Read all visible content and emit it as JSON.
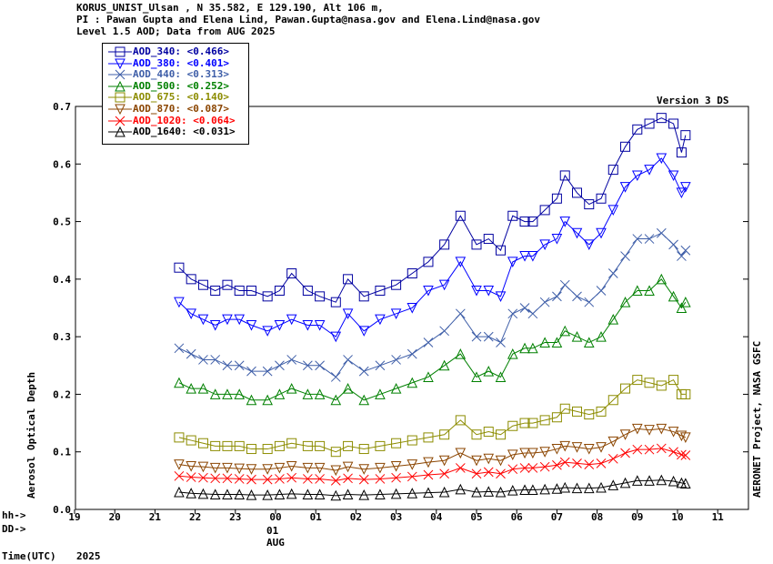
{
  "header": {
    "line1": "KORUS_UNIST_Ulsan , N 35.582, E 129.190, Alt 106 m,",
    "line2": "PI : Pawan Gupta and Elena Lind, Pawan.Gupta@nasa.gov and Elena.Lind@nasa.gov",
    "line3": "Level 1.5 AOD; Data from AUG 2025"
  },
  "version_label": "Version 3 DS",
  "right_label": "AERONET Project, NASA GSFC",
  "y_axis_label": "Aerosol Optical Depth",
  "time_axis": {
    "hh_label": "hh->",
    "dd_label": "DD->",
    "day_tick_labels": [
      "19",
      "20",
      "21",
      "22",
      "23",
      "00",
      "01",
      "02",
      "03",
      "04",
      "05",
      "06",
      "07",
      "08",
      "09",
      "10",
      "11"
    ],
    "day_mark": "01",
    "month_label": "AUG",
    "time_label": "Time(UTC)",
    "year": "2025"
  },
  "colors": {
    "AOD_340": "#0000a0",
    "AOD_380": "#0000ff",
    "AOD_440": "#3e5ea8",
    "AOD_500": "#008000",
    "AOD_675": "#8c8c00",
    "AOD_870": "#8b4500",
    "AOD_1020": "#ff0000",
    "AOD_1640": "#000000"
  },
  "chart_data": {
    "type": "scatter",
    "xlim": [
      19,
      11.8
    ],
    "ylim": [
      0.0,
      0.7
    ],
    "y_ticks": [
      "0.0",
      "0.1",
      "0.2",
      "0.3",
      "0.4",
      "0.5",
      "0.6",
      "0.7"
    ],
    "legend_position": "top-left",
    "series": [
      {
        "name": "AOD_340",
        "legend_text": "AOD_340: <0.466>",
        "marker": "square",
        "x": [
          21.6,
          21.9,
          22.2,
          22.5,
          22.8,
          23.1,
          23.4,
          23.8,
          24.1,
          24.4,
          24.8,
          25.1,
          25.5,
          25.8,
          26.2,
          26.6,
          27.0,
          27.4,
          27.8,
          28.2,
          28.6,
          29.0,
          29.3,
          29.6,
          29.9,
          30.2,
          30.4,
          30.7,
          31.0,
          31.2,
          31.5,
          31.8,
          32.1,
          32.4,
          32.7,
          33.0,
          33.3,
          33.6,
          33.9,
          34.1,
          34.2
        ],
        "y": [
          0.42,
          0.4,
          0.39,
          0.38,
          0.39,
          0.38,
          0.38,
          0.37,
          0.38,
          0.41,
          0.38,
          0.37,
          0.36,
          0.4,
          0.37,
          0.38,
          0.39,
          0.41,
          0.43,
          0.46,
          0.51,
          0.46,
          0.47,
          0.45,
          0.51,
          0.5,
          0.5,
          0.52,
          0.54,
          0.58,
          0.55,
          0.53,
          0.54,
          0.59,
          0.63,
          0.66,
          0.67,
          0.68,
          0.67,
          0.62,
          0.65
        ]
      },
      {
        "name": "AOD_380",
        "legend_text": "AOD_380: <0.401>",
        "marker": "triangle-down",
        "x": [
          21.6,
          21.9,
          22.2,
          22.5,
          22.8,
          23.1,
          23.4,
          23.8,
          24.1,
          24.4,
          24.8,
          25.1,
          25.5,
          25.8,
          26.2,
          26.6,
          27.0,
          27.4,
          27.8,
          28.2,
          28.6,
          29.0,
          29.3,
          29.6,
          29.9,
          30.2,
          30.4,
          30.7,
          31.0,
          31.2,
          31.5,
          31.8,
          32.1,
          32.4,
          32.7,
          33.0,
          33.3,
          33.6,
          33.9,
          34.1,
          34.2
        ],
        "y": [
          0.36,
          0.34,
          0.33,
          0.32,
          0.33,
          0.33,
          0.32,
          0.31,
          0.32,
          0.33,
          0.32,
          0.32,
          0.3,
          0.34,
          0.31,
          0.33,
          0.34,
          0.35,
          0.38,
          0.39,
          0.43,
          0.38,
          0.38,
          0.37,
          0.43,
          0.44,
          0.44,
          0.46,
          0.47,
          0.5,
          0.48,
          0.46,
          0.48,
          0.52,
          0.56,
          0.58,
          0.59,
          0.61,
          0.58,
          0.55,
          0.56
        ]
      },
      {
        "name": "AOD_440",
        "legend_text": "AOD_440: <0.313>",
        "marker": "x",
        "x": [
          21.6,
          21.9,
          22.2,
          22.5,
          22.8,
          23.1,
          23.4,
          23.8,
          24.1,
          24.4,
          24.8,
          25.1,
          25.5,
          25.8,
          26.2,
          26.6,
          27.0,
          27.4,
          27.8,
          28.2,
          28.6,
          29.0,
          29.3,
          29.6,
          29.9,
          30.2,
          30.4,
          30.7,
          31.0,
          31.2,
          31.5,
          31.8,
          32.1,
          32.4,
          32.7,
          33.0,
          33.3,
          33.6,
          33.9,
          34.1,
          34.2
        ],
        "y": [
          0.28,
          0.27,
          0.26,
          0.26,
          0.25,
          0.25,
          0.24,
          0.24,
          0.25,
          0.26,
          0.25,
          0.25,
          0.23,
          0.26,
          0.24,
          0.25,
          0.26,
          0.27,
          0.29,
          0.31,
          0.34,
          0.3,
          0.3,
          0.29,
          0.34,
          0.35,
          0.34,
          0.36,
          0.37,
          0.39,
          0.37,
          0.36,
          0.38,
          0.41,
          0.44,
          0.47,
          0.47,
          0.48,
          0.46,
          0.44,
          0.45
        ]
      },
      {
        "name": "AOD_500",
        "legend_text": "AOD_500: <0.252>",
        "marker": "triangle-up",
        "x": [
          21.6,
          21.9,
          22.2,
          22.5,
          22.8,
          23.1,
          23.4,
          23.8,
          24.1,
          24.4,
          24.8,
          25.1,
          25.5,
          25.8,
          26.2,
          26.6,
          27.0,
          27.4,
          27.8,
          28.2,
          28.6,
          29.0,
          29.3,
          29.6,
          29.9,
          30.2,
          30.4,
          30.7,
          31.0,
          31.2,
          31.5,
          31.8,
          32.1,
          32.4,
          32.7,
          33.0,
          33.3,
          33.6,
          33.9,
          34.1,
          34.2
        ],
        "y": [
          0.22,
          0.21,
          0.21,
          0.2,
          0.2,
          0.2,
          0.19,
          0.19,
          0.2,
          0.21,
          0.2,
          0.2,
          0.19,
          0.21,
          0.19,
          0.2,
          0.21,
          0.22,
          0.23,
          0.25,
          0.27,
          0.23,
          0.24,
          0.23,
          0.27,
          0.28,
          0.28,
          0.29,
          0.29,
          0.31,
          0.3,
          0.29,
          0.3,
          0.33,
          0.36,
          0.38,
          0.38,
          0.4,
          0.37,
          0.35,
          0.36
        ]
      },
      {
        "name": "AOD_675",
        "legend_text": "AOD_675: <0.140>",
        "marker": "square",
        "x": [
          21.6,
          21.9,
          22.2,
          22.5,
          22.8,
          23.1,
          23.4,
          23.8,
          24.1,
          24.4,
          24.8,
          25.1,
          25.5,
          25.8,
          26.2,
          26.6,
          27.0,
          27.4,
          27.8,
          28.2,
          28.6,
          29.0,
          29.3,
          29.6,
          29.9,
          30.2,
          30.4,
          30.7,
          31.0,
          31.2,
          31.5,
          31.8,
          32.1,
          32.4,
          32.7,
          33.0,
          33.3,
          33.6,
          33.9,
          34.1,
          34.2
        ],
        "y": [
          0.125,
          0.12,
          0.115,
          0.11,
          0.11,
          0.11,
          0.105,
          0.105,
          0.11,
          0.115,
          0.11,
          0.11,
          0.1,
          0.11,
          0.105,
          0.11,
          0.115,
          0.12,
          0.125,
          0.13,
          0.155,
          0.13,
          0.135,
          0.13,
          0.145,
          0.15,
          0.15,
          0.155,
          0.16,
          0.175,
          0.17,
          0.165,
          0.17,
          0.19,
          0.21,
          0.225,
          0.22,
          0.215,
          0.225,
          0.2,
          0.2
        ]
      },
      {
        "name": "AOD_870",
        "legend_text": "AOD_870: <0.087>",
        "marker": "triangle-down",
        "x": [
          21.6,
          21.9,
          22.2,
          22.5,
          22.8,
          23.1,
          23.4,
          23.8,
          24.1,
          24.4,
          24.8,
          25.1,
          25.5,
          25.8,
          26.2,
          26.6,
          27.0,
          27.4,
          27.8,
          28.2,
          28.6,
          29.0,
          29.3,
          29.6,
          29.9,
          30.2,
          30.4,
          30.7,
          31.0,
          31.2,
          31.5,
          31.8,
          32.1,
          32.4,
          32.7,
          33.0,
          33.3,
          33.6,
          33.9,
          34.1,
          34.2
        ],
        "y": [
          0.078,
          0.075,
          0.074,
          0.072,
          0.072,
          0.071,
          0.07,
          0.07,
          0.072,
          0.075,
          0.072,
          0.072,
          0.068,
          0.074,
          0.07,
          0.072,
          0.075,
          0.078,
          0.082,
          0.085,
          0.098,
          0.085,
          0.088,
          0.085,
          0.095,
          0.098,
          0.098,
          0.1,
          0.105,
          0.11,
          0.108,
          0.105,
          0.108,
          0.118,
          0.13,
          0.14,
          0.138,
          0.14,
          0.135,
          0.128,
          0.125
        ]
      },
      {
        "name": "AOD_1020",
        "legend_text": "AOD_1020: <0.064>",
        "marker": "x",
        "x": [
          21.6,
          21.9,
          22.2,
          22.5,
          22.8,
          23.1,
          23.4,
          23.8,
          24.1,
          24.4,
          24.8,
          25.1,
          25.5,
          25.8,
          26.2,
          26.6,
          27.0,
          27.4,
          27.8,
          28.2,
          28.6,
          29.0,
          29.3,
          29.6,
          29.9,
          30.2,
          30.4,
          30.7,
          31.0,
          31.2,
          31.5,
          31.8,
          32.1,
          32.4,
          32.7,
          33.0,
          33.3,
          33.6,
          33.9,
          34.1,
          34.2
        ],
        "y": [
          0.058,
          0.056,
          0.055,
          0.054,
          0.054,
          0.053,
          0.052,
          0.052,
          0.053,
          0.055,
          0.053,
          0.053,
          0.05,
          0.054,
          0.052,
          0.053,
          0.055,
          0.057,
          0.06,
          0.062,
          0.072,
          0.062,
          0.065,
          0.062,
          0.07,
          0.072,
          0.072,
          0.074,
          0.077,
          0.082,
          0.08,
          0.078,
          0.08,
          0.088,
          0.098,
          0.104,
          0.104,
          0.106,
          0.1,
          0.095,
          0.094
        ]
      },
      {
        "name": "AOD_1640",
        "legend_text": "AOD_1640: <0.031>",
        "marker": "triangle-up",
        "x": [
          21.6,
          21.9,
          22.2,
          22.5,
          22.8,
          23.1,
          23.4,
          23.8,
          24.1,
          24.4,
          24.8,
          25.1,
          25.5,
          25.8,
          26.2,
          26.6,
          27.0,
          27.4,
          27.8,
          28.2,
          28.6,
          29.0,
          29.3,
          29.6,
          29.9,
          30.2,
          30.4,
          30.7,
          31.0,
          31.2,
          31.5,
          31.8,
          32.1,
          32.4,
          32.7,
          33.0,
          33.3,
          33.6,
          33.9,
          34.1,
          34.2
        ],
        "y": [
          0.03,
          0.028,
          0.027,
          0.026,
          0.026,
          0.026,
          0.025,
          0.025,
          0.026,
          0.027,
          0.026,
          0.026,
          0.024,
          0.026,
          0.025,
          0.026,
          0.027,
          0.028,
          0.029,
          0.03,
          0.035,
          0.03,
          0.031,
          0.03,
          0.033,
          0.034,
          0.034,
          0.035,
          0.036,
          0.038,
          0.037,
          0.037,
          0.038,
          0.042,
          0.046,
          0.05,
          0.05,
          0.051,
          0.049,
          0.046,
          0.045
        ]
      }
    ]
  }
}
